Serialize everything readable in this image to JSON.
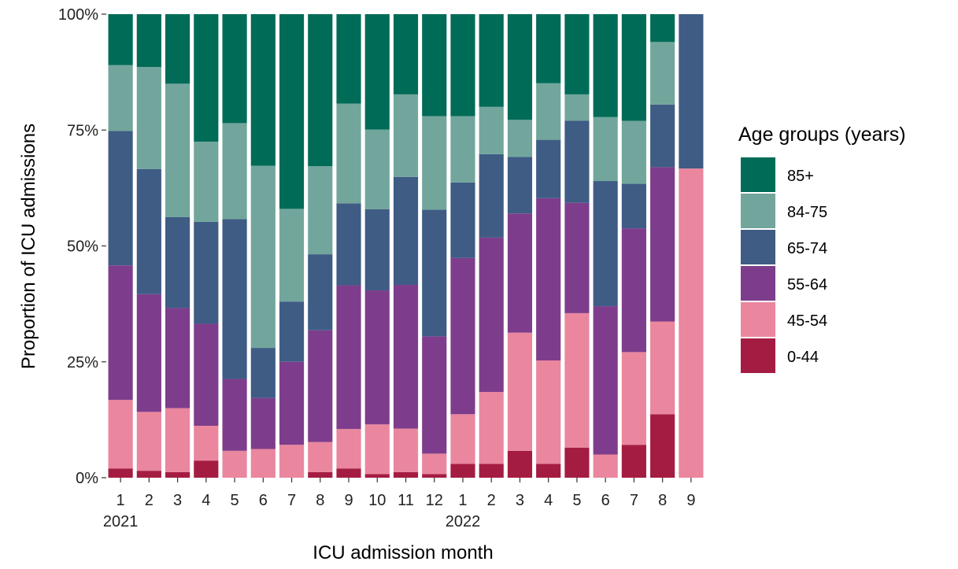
{
  "chart_data": {
    "type": "bar",
    "stacked": true,
    "xlabel": "ICU admission month",
    "ylabel": "Proportion of ICU admissions",
    "ylim": [
      0,
      1
    ],
    "y_ticks": [
      "0%",
      "25%",
      "50%",
      "75%",
      "100%"
    ],
    "categories": [
      "1",
      "2",
      "3",
      "4",
      "5",
      "6",
      "7",
      "8",
      "9",
      "10",
      "11",
      "12",
      "1",
      "2",
      "3",
      "4",
      "5",
      "6",
      "7",
      "8",
      "9"
    ],
    "year_labels": [
      {
        "index": 0,
        "label": "2021"
      },
      {
        "index": 12,
        "label": "2022"
      }
    ],
    "legend": {
      "title": "Age groups (years)",
      "position": "right"
    },
    "series": [
      {
        "name": "0-44",
        "color": "#A51C42",
        "values": [
          0.02,
          0.015,
          0.012,
          0.037,
          0,
          0,
          0,
          0.012,
          0.02,
          0.008,
          0.012,
          0.008,
          0.03,
          0.03,
          0.058,
          0.03,
          0.065,
          0,
          0.071,
          0.137,
          0
        ]
      },
      {
        "name": "45-54",
        "color": "#EA869E",
        "values": [
          0.148,
          0.127,
          0.138,
          0.075,
          0.058,
          0.062,
          0.071,
          0.065,
          0.085,
          0.107,
          0.094,
          0.044,
          0.107,
          0.155,
          0.255,
          0.223,
          0.29,
          0.05,
          0.2,
          0.2,
          0.667
        ]
      },
      {
        "name": "55-64",
        "color": "#7E3D8C",
        "values": [
          0.29,
          0.254,
          0.216,
          0.22,
          0.155,
          0.11,
          0.179,
          0.241,
          0.31,
          0.289,
          0.31,
          0.253,
          0.337,
          0.333,
          0.257,
          0.35,
          0.238,
          0.32,
          0.267,
          0.333,
          0
        ]
      },
      {
        "name": "65-74",
        "color": "#3F5C85",
        "values": [
          0.29,
          0.27,
          0.196,
          0.22,
          0.345,
          0.108,
          0.13,
          0.164,
          0.177,
          0.175,
          0.233,
          0.273,
          0.163,
          0.18,
          0.122,
          0.126,
          0.177,
          0.27,
          0.096,
          0.135,
          0.333
        ]
      },
      {
        "name": "84-75",
        "color": "#72A69C",
        "values": [
          0.142,
          0.22,
          0.288,
          0.173,
          0.207,
          0.393,
          0.2,
          0.19,
          0.215,
          0.172,
          0.178,
          0.202,
          0.143,
          0.102,
          0.08,
          0.122,
          0.057,
          0.138,
          0.136,
          0.135,
          0
        ]
      },
      {
        "name": "85+",
        "color": "#006B57",
        "values": [
          0.11,
          0.114,
          0.15,
          0.275,
          0.235,
          0.327,
          0.42,
          0.328,
          0.193,
          0.249,
          0.173,
          0.22,
          0.22,
          0.2,
          0.228,
          0.149,
          0.173,
          0.222,
          0.23,
          0.06,
          0
        ]
      }
    ]
  }
}
